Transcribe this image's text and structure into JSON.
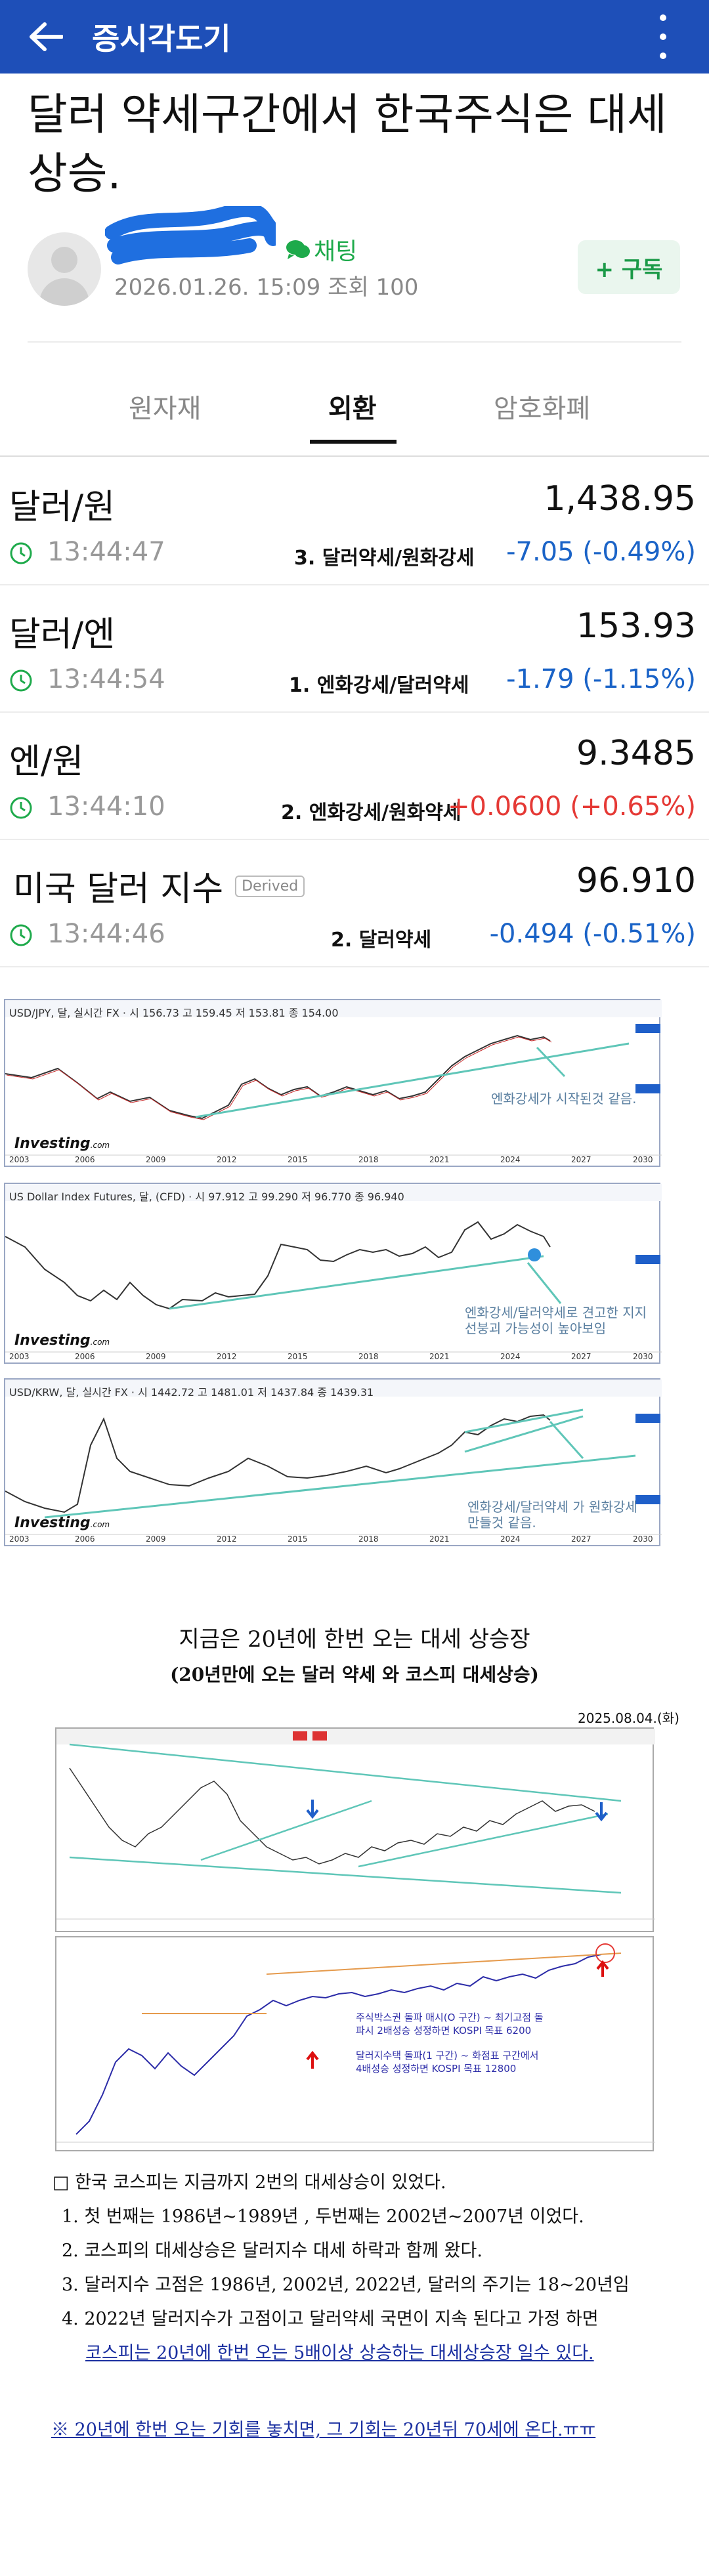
{
  "appbar": {
    "title": "증시각도기"
  },
  "post": {
    "title": "달러 약세구간에서 한국주식은 대세 상승.",
    "chat_label": "채팅",
    "meta": "2026.01.26. 15:09  조회 100",
    "subscribe_label": "+ 구독"
  },
  "tabs": [
    {
      "label": "원자재"
    },
    {
      "label": "외환"
    },
    {
      "label": "암호화폐"
    }
  ],
  "quotes": [
    {
      "name": "달러/원",
      "price": "1,438.95",
      "time": "13:44:47",
      "note": "3. 달러약세/원화강세",
      "change": "-7.05 (-0.49%)"
    },
    {
      "name": "달러/엔",
      "price": "153.93",
      "time": "13:44:54",
      "note": "1. 엔화강세/달러약세",
      "change": "-1.79 (-1.15%)"
    },
    {
      "name": "엔/원",
      "price": "9.3485",
      "time": "13:44:10",
      "note": "2. 엔화강세/원화약세",
      "change": "+0.0600 (+0.65%)"
    },
    {
      "name": "미국 달러 지수",
      "badge": "Derived",
      "price": "96.910",
      "time": "13:44:46",
      "note": "2. 달러약세",
      "change": "-0.494 (-0.51%)"
    }
  ],
  "charts": [
    {
      "header": "USD/JPY, 달, 실시간 FX · 시 156.73  고 159.45  저 153.81  종 154.00",
      "annotation": "엔화강세가 시작된것 같음.",
      "years": [
        "2003",
        "2006",
        "2009",
        "2012",
        "2015",
        "2018",
        "2021",
        "2024",
        "2027",
        "2030"
      ],
      "brand": "Investing"
    },
    {
      "header": "US Dollar Index Futures, 달, (CFD) · 시 97.912  고 99.290  저 96.770  종 96.940",
      "annotation": "엔화강세/달러약세로 견고한 지지선붕괴 가능성이 높아보임",
      "years": [
        "2003",
        "2006",
        "2009",
        "2012",
        "2015",
        "2018",
        "2021",
        "2024",
        "2027",
        "2030"
      ],
      "brand": "Investing"
    },
    {
      "header": "USD/KRW, 달, 실시간 FX · 시 1442.72  고 1481.01  저 1437.84  종 1439.31",
      "annotation": "엔화강세/달러약세 가 원화강세 만들것 같음.",
      "years": [
        "2003",
        "2006",
        "2009",
        "2012",
        "2015",
        "2018",
        "2021",
        "2024",
        "2027",
        "2030"
      ],
      "brand": "Investing"
    }
  ],
  "article": {
    "title": "지금은 20년에 한번 오는 대세 상승장",
    "subtitle": "(20년만에 오는 달러 약세 와 코스피 대세상승)",
    "date": "2025.08.04.(화)",
    "kospi_note1": "주식박스권 돌파 매시(O 구간) ~ 최기고점 돌파시 2배성승 성정하면 KOSPI 목표 6200",
    "kospi_note2": "달러지수택 돌파(1 구간) ~ 화점표 구간에서 4배성승 성정하면 KOSPI 목표 12800",
    "intro": "□ 한국 코스피는 지금까지 2번의 대세상승이 있었다.",
    "item1": "1. 첫 번째는 1986년~1989년 , 두번째는 2002년~2007년 이었다.",
    "item2": "2. 코스피의 대세상승은 달러지수 대세 하락과 함께 왔다.",
    "item3": "3. 달러지수 고점은 1986년, 2002년, 2022년, 달러의 주기는 18~20년임",
    "item4a": "4. 2022년 달러지수가 고점이고 달러약세 국면이 지속 된다고 가정 하면",
    "item4b": "코스피는 20년에 한번 오는 5배이상 상승하는 대세상승장 일수 있다.",
    "closing": "※ 20년에 한번 오는 기회를 놓치면, 그 기회는 20년뒤 70세에 온다.ㅠㅠ"
  },
  "colors": {
    "appbar": "#1e4fb8",
    "down": "#1a63c7",
    "up": "#e53935",
    "chat": "#1eaa4b"
  }
}
